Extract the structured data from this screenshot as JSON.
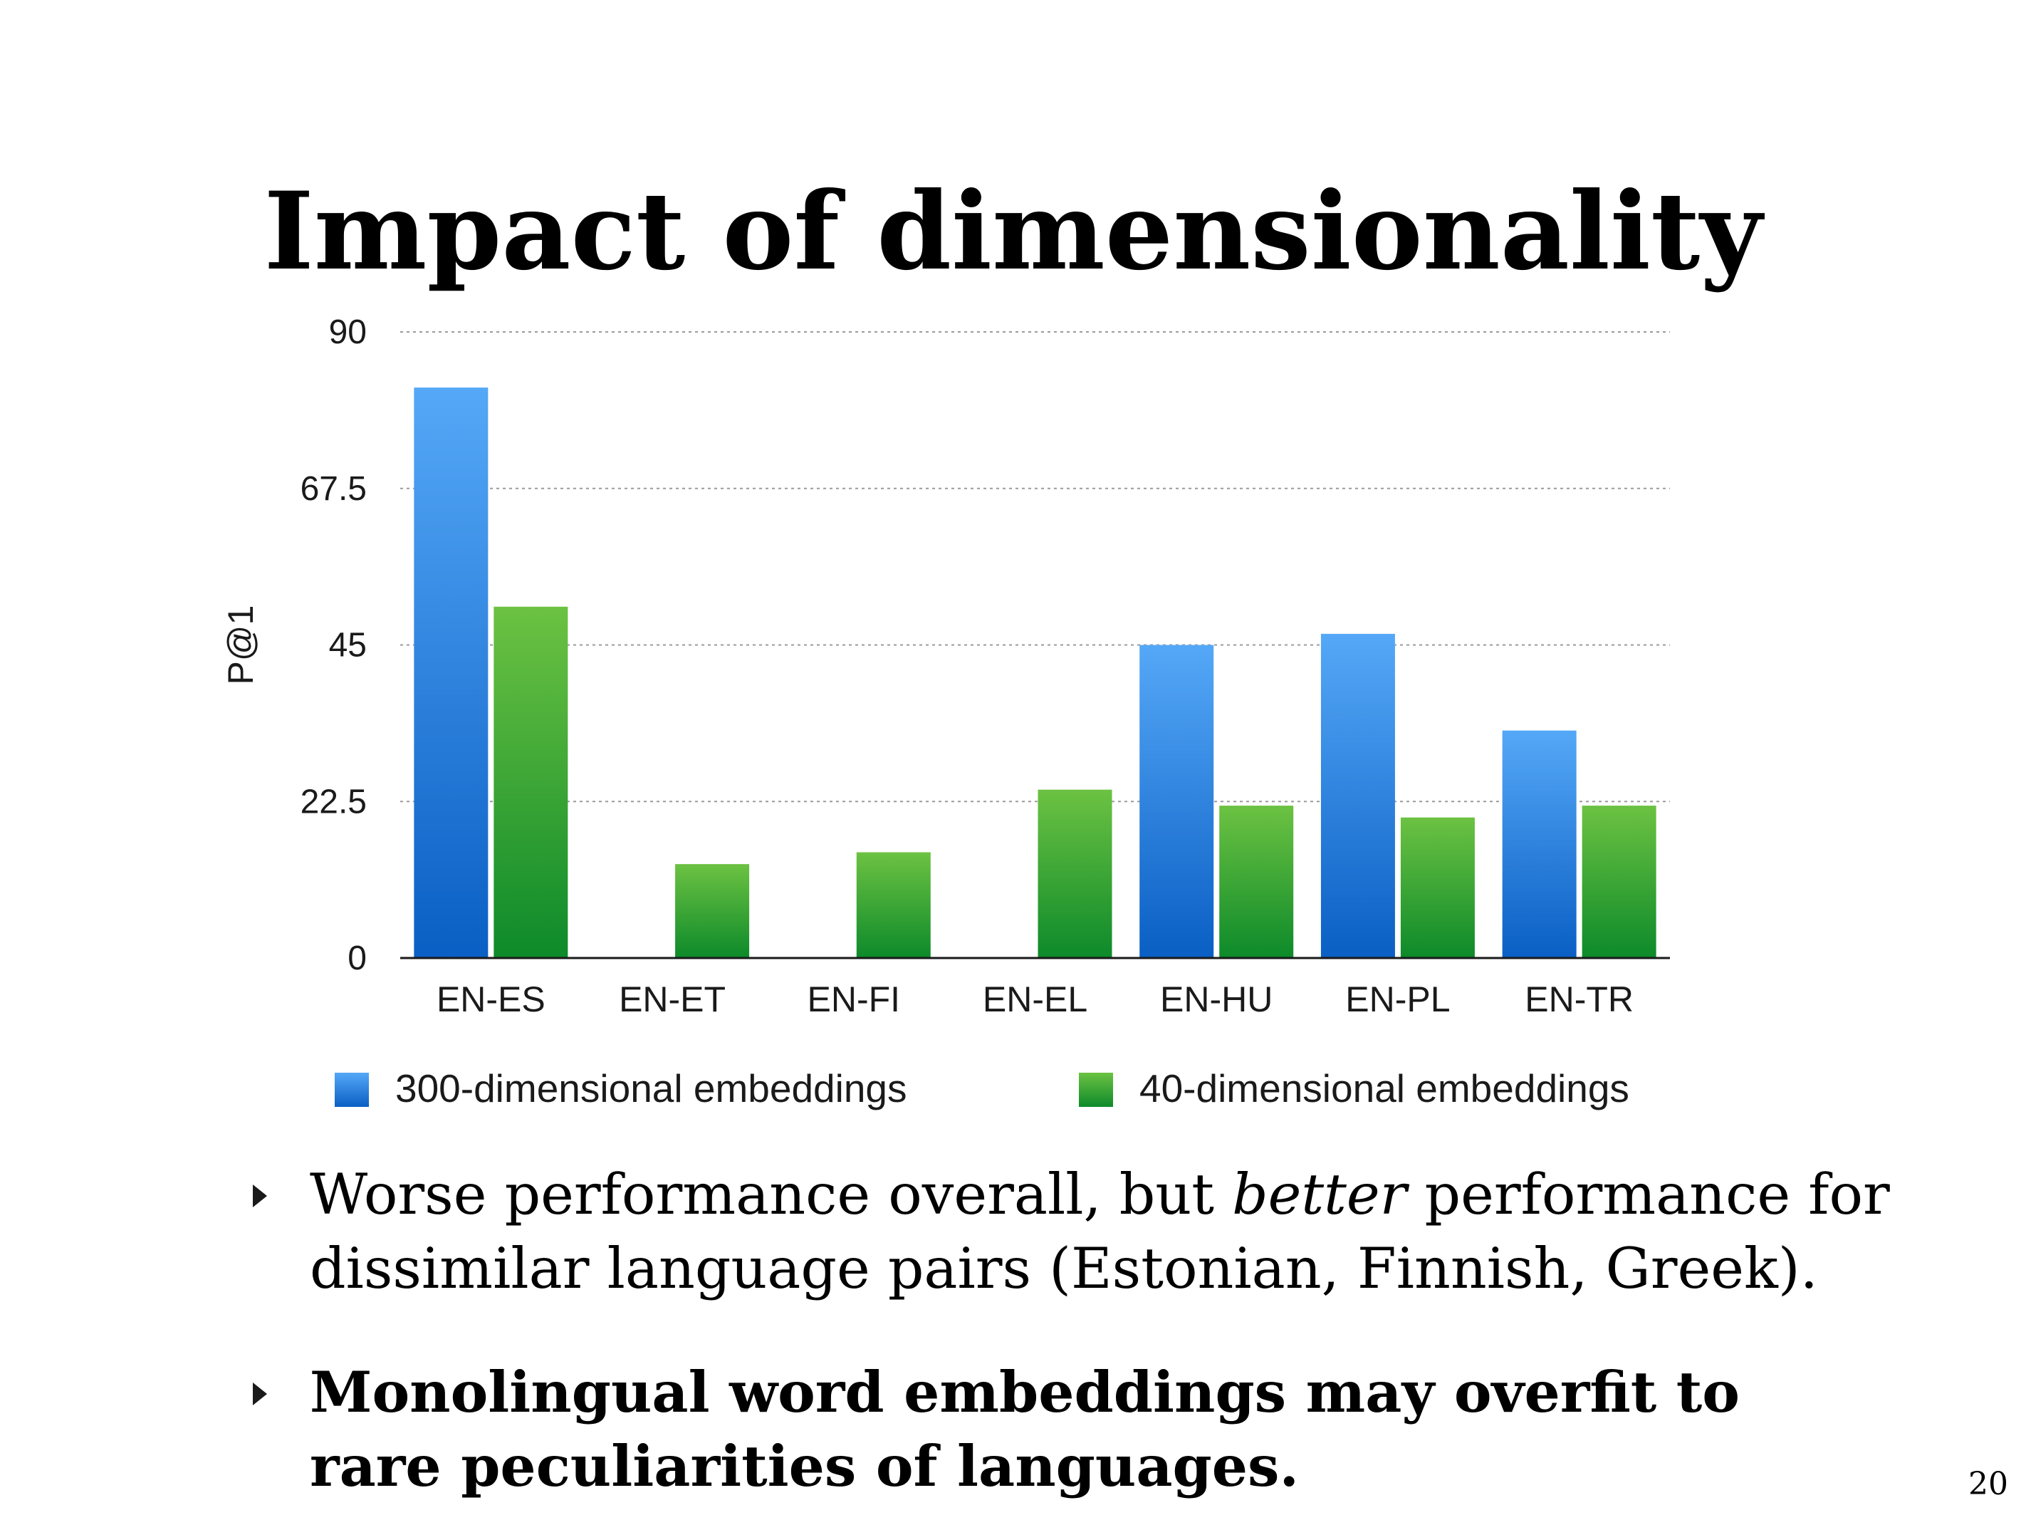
{
  "slide": {
    "title": "Impact of dimensionality",
    "page_number": "20",
    "bullets": [
      {
        "parts": [
          {
            "text": "Worse performance overall, but ",
            "italic": false
          },
          {
            "text": "better",
            "italic": true
          },
          {
            "text": " performance for dissimilar language pairs (Estonian, Finnish, Greek).",
            "italic": false
          }
        ]
      },
      {
        "text": "Monolingual word embeddings may overfit to rare peculiarities of languages."
      }
    ]
  },
  "chart_data": {
    "type": "bar",
    "title": "",
    "xlabel": "",
    "ylabel": "P@1",
    "ylim": [
      0,
      90
    ],
    "yticks": [
      "0",
      "22.5",
      "45",
      "67.5",
      "90"
    ],
    "grid": true,
    "legend_position": "bottom",
    "categories": [
      "EN-ES",
      "EN-ET",
      "EN-FI",
      "EN-EL",
      "EN-HU",
      "EN-PL",
      "EN-TR"
    ],
    "series": [
      {
        "name": "300-dimensional embeddings",
        "color_top": "#55a8f7",
        "color_bottom": "#0a5fc4",
        "values": [
          82,
          0,
          0,
          0,
          45,
          46.6,
          32.7
        ]
      },
      {
        "name": "40-dimensional embeddings",
        "color_top": "#6cc242",
        "color_bottom": "#0d8a2a",
        "values": [
          50.5,
          13.5,
          15.2,
          24.2,
          21.9,
          20.2,
          21.9
        ]
      }
    ]
  }
}
